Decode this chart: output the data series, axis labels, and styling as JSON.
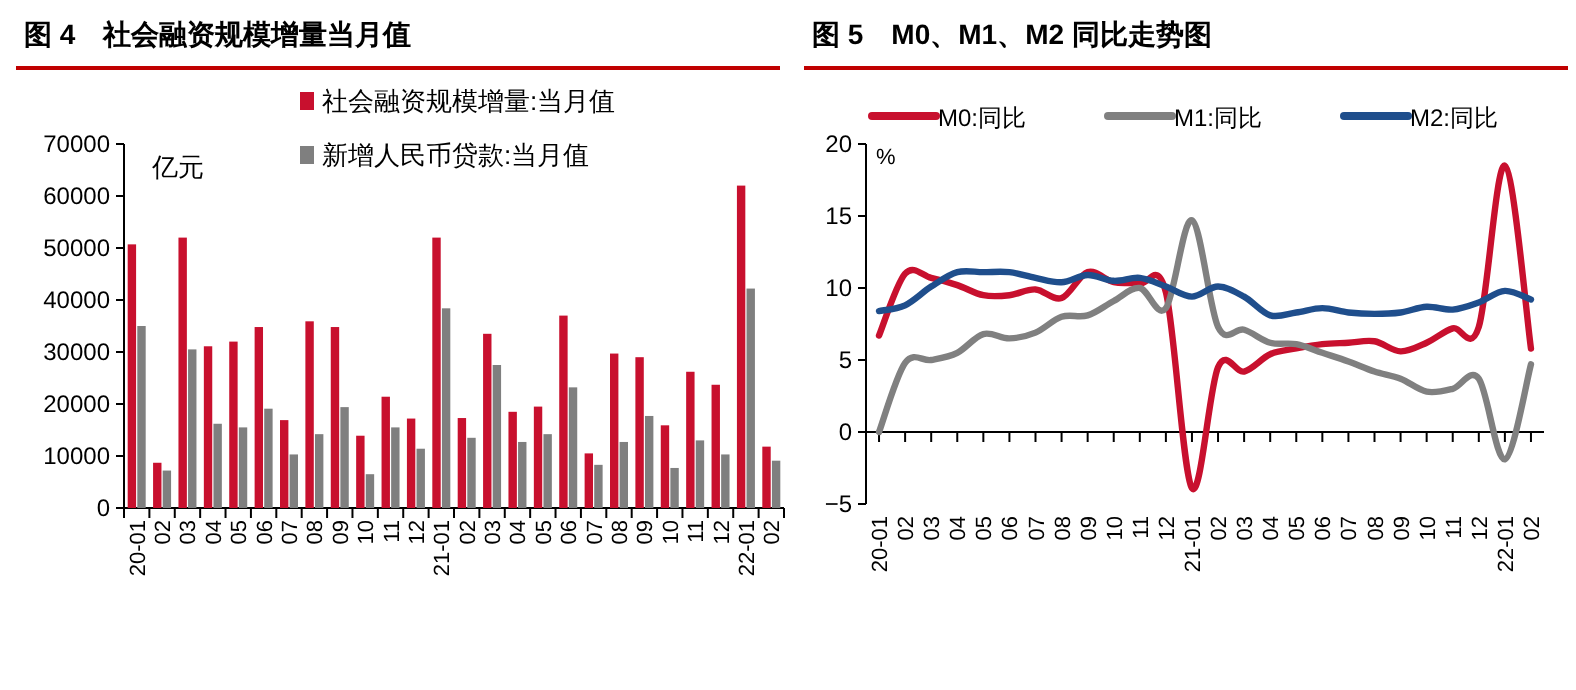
{
  "chart_data": [
    {
      "type": "bar",
      "title": "图 4　社会融资规模增量当月值",
      "ylabel": "亿元",
      "legend": "top right",
      "categories": [
        "20-01",
        "02",
        "03",
        "04",
        "05",
        "06",
        "07",
        "08",
        "09",
        "10",
        "11",
        "12",
        "21-01",
        "02",
        "03",
        "04",
        "05",
        "06",
        "07",
        "08",
        "09",
        "10",
        "11",
        "12",
        "22-01",
        "02"
      ],
      "ylim": [
        0,
        70000
      ],
      "yticks": [
        0,
        10000,
        20000,
        30000,
        40000,
        50000,
        60000,
        70000
      ],
      "series": [
        {
          "name": "社会融资规模增量:当月值",
          "color": "#c8102e",
          "values": [
            50700,
            8700,
            52000,
            31100,
            32000,
            34800,
            16900,
            35900,
            34800,
            13900,
            21400,
            17200,
            52000,
            17300,
            33500,
            18500,
            19500,
            37000,
            10500,
            29700,
            29000,
            15900,
            26200,
            23700,
            62000,
            11800
          ]
        },
        {
          "name": "新增人民币贷款:当月值",
          "color": "#7f7f7f",
          "values": [
            35000,
            7200,
            30500,
            16200,
            15500,
            19100,
            10300,
            14200,
            19400,
            6500,
            15500,
            11400,
            38400,
            13500,
            27500,
            12700,
            14200,
            23200,
            8300,
            12700,
            17700,
            7700,
            13000,
            10300,
            42200,
            9100
          ]
        }
      ]
    },
    {
      "type": "line",
      "title": "图 5　M0、M1、M2 同比走势图",
      "ylabel": "%",
      "legend": "top",
      "categories": [
        "20-01",
        "02",
        "03",
        "04",
        "05",
        "06",
        "07",
        "08",
        "09",
        "10",
        "11",
        "12",
        "21-01",
        "02",
        "03",
        "04",
        "05",
        "06",
        "07",
        "08",
        "09",
        "10",
        "11",
        "12",
        "22-01",
        "02"
      ],
      "ylim": [
        -5,
        20
      ],
      "yticks": [
        -5,
        0,
        5,
        10,
        15,
        20
      ],
      "series": [
        {
          "name": "M0:同比",
          "color": "#c8102e",
          "values": [
            6.7,
            11.0,
            10.7,
            10.2,
            9.5,
            9.5,
            9.9,
            9.3,
            11.1,
            10.4,
            10.3,
            9.7,
            -3.9,
            4.5,
            4.2,
            5.4,
            5.8,
            6.1,
            6.2,
            6.3,
            5.6,
            6.2,
            7.2,
            7.3,
            18.5,
            5.8
          ]
        },
        {
          "name": "M1:同比",
          "color": "#808080",
          "values": [
            0.0,
            4.8,
            5.0,
            5.5,
            6.8,
            6.5,
            6.9,
            8.0,
            8.1,
            9.1,
            10.0,
            8.6,
            14.7,
            7.3,
            7.1,
            6.2,
            6.1,
            5.5,
            4.9,
            4.2,
            3.7,
            2.8,
            3.0,
            3.7,
            -1.9,
            4.7
          ]
        },
        {
          "name": "M2:同比",
          "color": "#1f4e8c",
          "values": [
            8.4,
            8.8,
            10.1,
            11.1,
            11.1,
            11.1,
            10.7,
            10.4,
            10.9,
            10.5,
            10.7,
            10.1,
            9.4,
            10.1,
            9.4,
            8.1,
            8.3,
            8.6,
            8.3,
            8.2,
            8.3,
            8.7,
            8.5,
            9.0,
            9.8,
            9.2
          ]
        }
      ]
    }
  ]
}
